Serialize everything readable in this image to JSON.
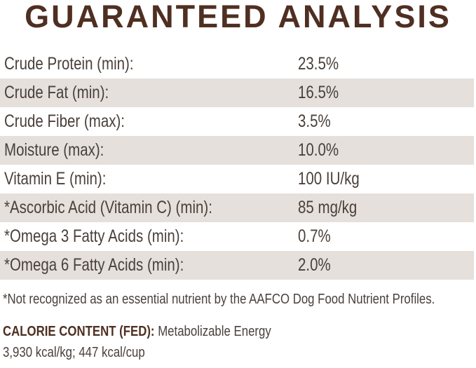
{
  "title": "GUARANTEED ANALYSIS",
  "rows": [
    {
      "label": "Crude Protein (min):",
      "value": "23.5%"
    },
    {
      "label": "Crude Fat (min):",
      "value": "16.5%"
    },
    {
      "label": "Crude Fiber (max):",
      "value": "3.5%"
    },
    {
      "label": "Moisture (max):",
      "value": "10.0%"
    },
    {
      "label": "Vitamin E (min):",
      "value": "100 IU/kg"
    },
    {
      "label": "*Ascorbic Acid (Vitamin C) (min):",
      "value": "85 mg/kg"
    },
    {
      "label": "*Omega 3 Fatty Acids (min):",
      "value": "0.7%"
    },
    {
      "label": "*Omega 6 Fatty Acids (min):",
      "value": "2.0%"
    }
  ],
  "footnote": "*Not recognized as an essential nutrient by the AAFCO Dog Food Nutrient Profiles.",
  "calorie": {
    "heading": "CALORIE CONTENT (FED):",
    "line1": " Metabolizable Energy",
    "line2": "3,930 kcal/kg; 447 kcal/cup"
  },
  "colors": {
    "title": "#4f2f22",
    "text": "#4a403b",
    "shaded_row": "#e5e0dc"
  }
}
